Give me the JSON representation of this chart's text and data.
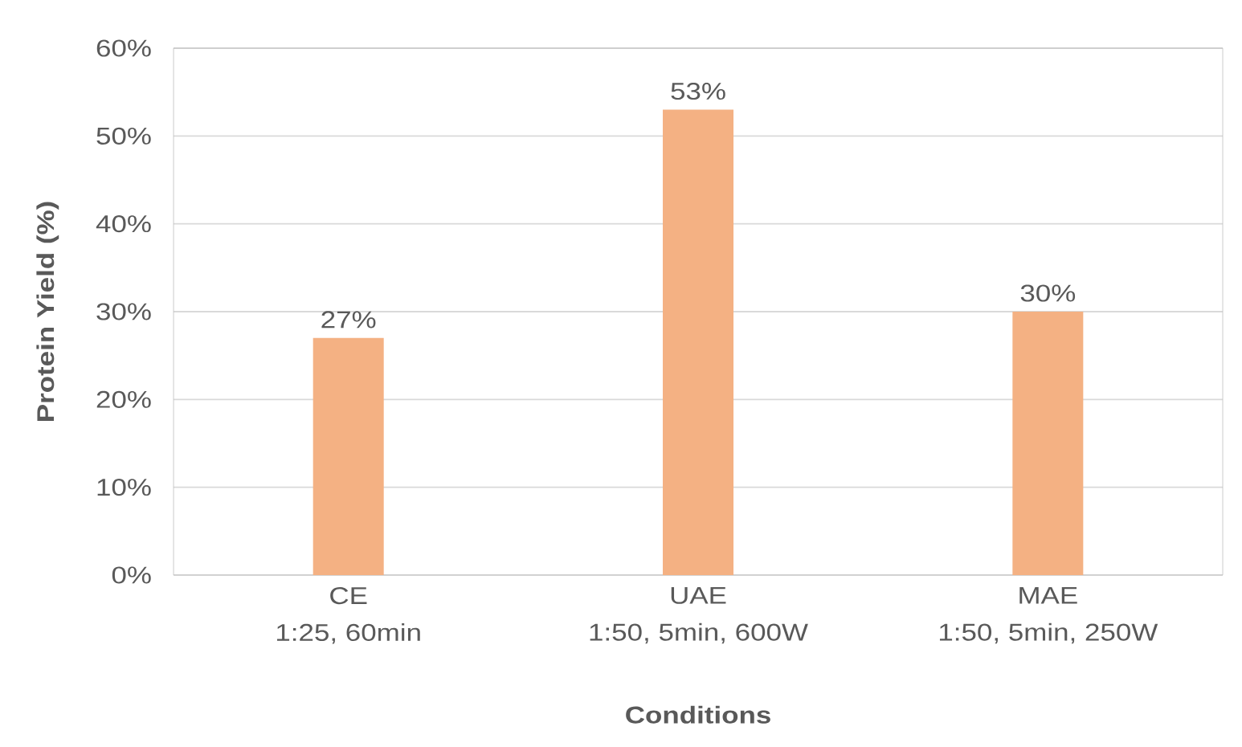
{
  "chart_data": {
    "type": "bar",
    "categories": [
      "CE\n1:25, 60min",
      "UAE\n1:50, 5min, 600W",
      "MAE\n1:50, 5min, 250W"
    ],
    "values": [
      27,
      53,
      30
    ],
    "value_labels": [
      "27%",
      "53%",
      "30%"
    ],
    "color": "#f4b183",
    "xlabel": "Conditions",
    "ylabel": "Protein Yield (%)",
    "ylim": [
      0,
      60
    ],
    "yticks": [
      {
        "value": 0,
        "label": "0%"
      },
      {
        "value": 10,
        "label": "10%"
      },
      {
        "value": 20,
        "label": "20%"
      },
      {
        "value": 30,
        "label": "30%"
      },
      {
        "value": 40,
        "label": "40%"
      },
      {
        "value": 50,
        "label": "50%"
      },
      {
        "value": 60,
        "label": "60%"
      }
    ],
    "grid": "y"
  }
}
